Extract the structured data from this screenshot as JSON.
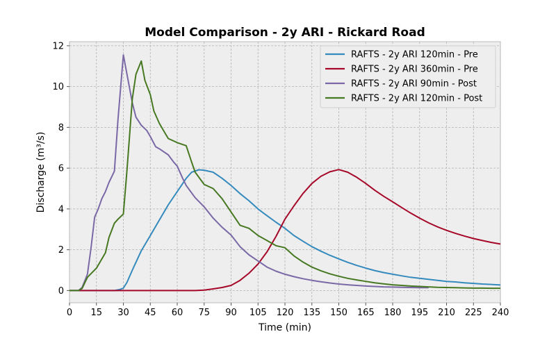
{
  "chart_data": {
    "type": "line",
    "title": "Model Comparison - 2y ARI - Rickard Road",
    "xlabel": "Time (min)",
    "ylabel": "Discharge (m³/s)",
    "xlim": [
      0,
      240
    ],
    "ylim": [
      -0.6,
      12.2
    ],
    "x_ticks": [
      "0",
      "15",
      "30",
      "45",
      "60",
      "75",
      "90",
      "105",
      "120",
      "135",
      "150",
      "165",
      "180",
      "195",
      "210",
      "225",
      "240"
    ],
    "y_ticks": [
      "0",
      "2",
      "4",
      "6",
      "8",
      "10",
      "12"
    ],
    "grid": true,
    "legend_position": "top-right",
    "series": [
      {
        "name": "RAFTS - 2y ARI 120min - Pre",
        "color": "#348abd",
        "points": [
          [
            0,
            0
          ],
          [
            5,
            0
          ],
          [
            10,
            0
          ],
          [
            15,
            0
          ],
          [
            20,
            0
          ],
          [
            25,
            0
          ],
          [
            28,
            0.05
          ],
          [
            30,
            0.12
          ],
          [
            32,
            0.4
          ],
          [
            35,
            1.0
          ],
          [
            40,
            1.95
          ],
          [
            45,
            2.7
          ],
          [
            50,
            3.45
          ],
          [
            55,
            4.2
          ],
          [
            60,
            4.85
          ],
          [
            65,
            5.5
          ],
          [
            68,
            5.8
          ],
          [
            72,
            5.92
          ],
          [
            75,
            5.9
          ],
          [
            80,
            5.8
          ],
          [
            85,
            5.5
          ],
          [
            90,
            5.15
          ],
          [
            95,
            4.75
          ],
          [
            100,
            4.4
          ],
          [
            105,
            4.0
          ],
          [
            110,
            3.67
          ],
          [
            115,
            3.35
          ],
          [
            120,
            3.05
          ],
          [
            125,
            2.7
          ],
          [
            130,
            2.42
          ],
          [
            135,
            2.15
          ],
          [
            140,
            1.93
          ],
          [
            145,
            1.73
          ],
          [
            150,
            1.55
          ],
          [
            155,
            1.38
          ],
          [
            160,
            1.23
          ],
          [
            165,
            1.1
          ],
          [
            170,
            0.98
          ],
          [
            175,
            0.88
          ],
          [
            180,
            0.8
          ],
          [
            185,
            0.72
          ],
          [
            190,
            0.65
          ],
          [
            195,
            0.6
          ],
          [
            200,
            0.55
          ],
          [
            205,
            0.5
          ],
          [
            210,
            0.45
          ],
          [
            215,
            0.42
          ],
          [
            220,
            0.38
          ],
          [
            225,
            0.35
          ],
          [
            230,
            0.32
          ],
          [
            235,
            0.3
          ],
          [
            240,
            0.27
          ]
        ]
      },
      {
        "name": "RAFTS - 2y ARI 360min - Pre",
        "color": "#a60628",
        "points": [
          [
            0,
            0
          ],
          [
            10,
            0
          ],
          [
            20,
            0
          ],
          [
            30,
            0
          ],
          [
            40,
            0
          ],
          [
            50,
            0
          ],
          [
            60,
            0
          ],
          [
            70,
            0
          ],
          [
            75,
            0.02
          ],
          [
            80,
            0.08
          ],
          [
            85,
            0.15
          ],
          [
            90,
            0.25
          ],
          [
            95,
            0.5
          ],
          [
            100,
            0.85
          ],
          [
            105,
            1.3
          ],
          [
            110,
            1.9
          ],
          [
            115,
            2.65
          ],
          [
            120,
            3.5
          ],
          [
            125,
            4.15
          ],
          [
            130,
            4.75
          ],
          [
            135,
            5.25
          ],
          [
            140,
            5.6
          ],
          [
            145,
            5.82
          ],
          [
            150,
            5.93
          ],
          [
            155,
            5.8
          ],
          [
            160,
            5.55
          ],
          [
            165,
            5.25
          ],
          [
            170,
            4.92
          ],
          [
            175,
            4.62
          ],
          [
            180,
            4.35
          ],
          [
            185,
            4.07
          ],
          [
            190,
            3.8
          ],
          [
            195,
            3.55
          ],
          [
            200,
            3.32
          ],
          [
            205,
            3.12
          ],
          [
            210,
            2.95
          ],
          [
            215,
            2.8
          ],
          [
            220,
            2.67
          ],
          [
            225,
            2.55
          ],
          [
            230,
            2.45
          ],
          [
            235,
            2.36
          ],
          [
            240,
            2.28
          ]
        ]
      },
      {
        "name": "RAFTS - 2y ARI 90min - Post",
        "color": "#7a68a6",
        "points": [
          [
            0,
            0
          ],
          [
            5,
            0
          ],
          [
            7,
            0.15
          ],
          [
            10,
            0.8
          ],
          [
            12,
            2.1
          ],
          [
            14,
            3.6
          ],
          [
            16,
            4.0
          ],
          [
            18,
            4.5
          ],
          [
            20,
            4.85
          ],
          [
            22,
            5.3
          ],
          [
            25,
            5.85
          ],
          [
            27,
            8.4
          ],
          [
            30,
            11.55
          ],
          [
            32,
            10.6
          ],
          [
            35,
            9.2
          ],
          [
            37,
            8.5
          ],
          [
            40,
            8.1
          ],
          [
            43,
            7.85
          ],
          [
            45,
            7.55
          ],
          [
            48,
            7.05
          ],
          [
            50,
            6.95
          ],
          [
            55,
            6.65
          ],
          [
            58,
            6.3
          ],
          [
            60,
            6.1
          ],
          [
            63,
            5.5
          ],
          [
            65,
            5.15
          ],
          [
            70,
            4.55
          ],
          [
            75,
            4.1
          ],
          [
            80,
            3.55
          ],
          [
            85,
            3.1
          ],
          [
            90,
            2.72
          ],
          [
            95,
            2.15
          ],
          [
            100,
            1.75
          ],
          [
            105,
            1.45
          ],
          [
            110,
            1.15
          ],
          [
            115,
            0.95
          ],
          [
            120,
            0.8
          ],
          [
            125,
            0.68
          ],
          [
            130,
            0.58
          ],
          [
            135,
            0.5
          ],
          [
            140,
            0.43
          ],
          [
            145,
            0.37
          ],
          [
            150,
            0.32
          ],
          [
            155,
            0.28
          ],
          [
            160,
            0.25
          ],
          [
            165,
            0.22
          ],
          [
            170,
            0.2
          ],
          [
            175,
            0.18
          ],
          [
            180,
            0.17
          ],
          [
            185,
            0.16
          ],
          [
            190,
            0.15
          ],
          [
            195,
            0.14
          ],
          [
            200,
            0.14
          ]
        ]
      },
      {
        "name": "RAFTS - 2y ARI 120min - Post",
        "color": "#467821",
        "points": [
          [
            0,
            0
          ],
          [
            5,
            0
          ],
          [
            7,
            0.1
          ],
          [
            10,
            0.65
          ],
          [
            15,
            1.1
          ],
          [
            20,
            1.85
          ],
          [
            22,
            2.6
          ],
          [
            25,
            3.3
          ],
          [
            27,
            3.5
          ],
          [
            30,
            3.75
          ],
          [
            32,
            5.9
          ],
          [
            35,
            9.4
          ],
          [
            37,
            10.6
          ],
          [
            40,
            11.25
          ],
          [
            42,
            10.3
          ],
          [
            45,
            9.6
          ],
          [
            47,
            8.8
          ],
          [
            50,
            8.2
          ],
          [
            53,
            7.75
          ],
          [
            55,
            7.45
          ],
          [
            60,
            7.25
          ],
          [
            65,
            7.1
          ],
          [
            68,
            6.3
          ],
          [
            70,
            5.8
          ],
          [
            75,
            5.2
          ],
          [
            80,
            5.0
          ],
          [
            85,
            4.5
          ],
          [
            90,
            3.85
          ],
          [
            95,
            3.2
          ],
          [
            100,
            3.05
          ],
          [
            105,
            2.7
          ],
          [
            110,
            2.45
          ],
          [
            115,
            2.2
          ],
          [
            120,
            2.1
          ],
          [
            125,
            1.7
          ],
          [
            130,
            1.4
          ],
          [
            135,
            1.15
          ],
          [
            140,
            0.97
          ],
          [
            145,
            0.82
          ],
          [
            150,
            0.7
          ],
          [
            155,
            0.6
          ],
          [
            160,
            0.52
          ],
          [
            165,
            0.45
          ],
          [
            170,
            0.38
          ],
          [
            175,
            0.33
          ],
          [
            180,
            0.28
          ],
          [
            185,
            0.25
          ],
          [
            190,
            0.22
          ],
          [
            195,
            0.2
          ],
          [
            200,
            0.18
          ],
          [
            205,
            0.16
          ],
          [
            210,
            0.15
          ],
          [
            215,
            0.14
          ],
          [
            220,
            0.13
          ],
          [
            225,
            0.12
          ],
          [
            230,
            0.12
          ],
          [
            235,
            0.11
          ],
          [
            240,
            0.11
          ]
        ]
      }
    ]
  }
}
